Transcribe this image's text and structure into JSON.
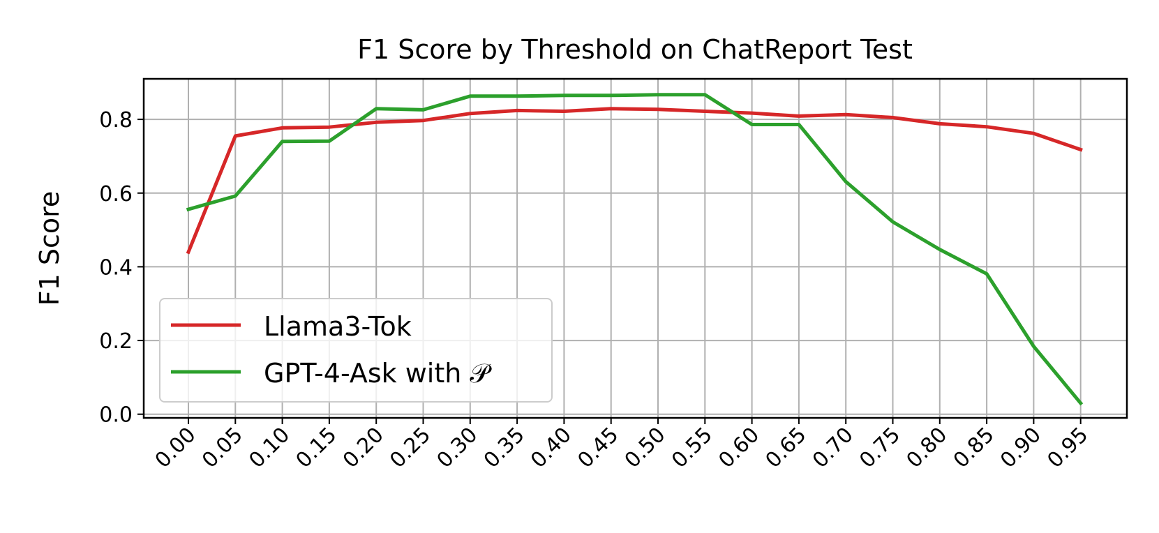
{
  "chart_data": {
    "type": "line",
    "title": "F1 Score by Threshold on ChatReport Test",
    "xlabel": "",
    "ylabel": "F1 Score",
    "categories": [
      "0.00",
      "0.05",
      "0.10",
      "0.15",
      "0.20",
      "0.25",
      "0.30",
      "0.35",
      "0.40",
      "0.45",
      "0.50",
      "0.55",
      "0.60",
      "0.65",
      "0.70",
      "0.75",
      "0.80",
      "0.85",
      "0.90",
      "0.95"
    ],
    "ylim": [
      -0.01,
      0.91
    ],
    "yticks": [
      "0.0",
      "0.2",
      "0.4",
      "0.6",
      "0.8"
    ],
    "ytick_values": [
      0.0,
      0.2,
      0.4,
      0.6,
      0.8
    ],
    "grid": true,
    "legend_position": "lower-left",
    "series": [
      {
        "name": "Llama3-Tok",
        "color": "#d62728",
        "values": [
          0.44,
          0.755,
          0.777,
          0.779,
          0.792,
          0.797,
          0.816,
          0.824,
          0.822,
          0.829,
          0.827,
          0.822,
          0.817,
          0.809,
          0.813,
          0.805,
          0.788,
          0.78,
          0.762,
          0.718
        ]
      },
      {
        "name": "GPT-4-Ask with 𝒫",
        "color": "#2ca02c",
        "values": [
          0.556,
          0.592,
          0.74,
          0.741,
          0.829,
          0.826,
          0.863,
          0.863,
          0.865,
          0.865,
          0.867,
          0.867,
          0.786,
          0.786,
          0.631,
          0.522,
          0.447,
          0.381,
          0.184,
          0.03
        ]
      }
    ]
  }
}
